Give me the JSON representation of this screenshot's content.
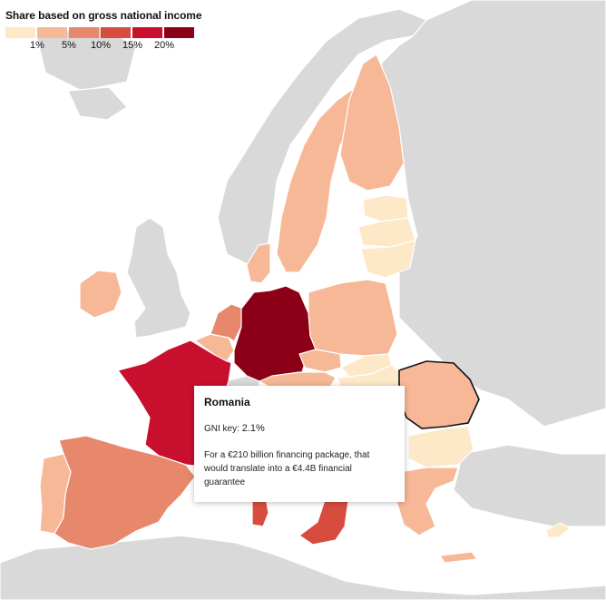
{
  "legend": {
    "title": "Share based on gross national income",
    "swatch_colors": [
      "#fde8c8",
      "#f6b896",
      "#e7876b",
      "#d84b3f",
      "#c8102e",
      "#8b0016"
    ],
    "ticks": [
      "1%",
      "5%",
      "10%",
      "15%",
      "20%"
    ]
  },
  "colors": {
    "ocean": "#ffffff",
    "non_eu_land": "#d9d9d9",
    "border": "#ffffff",
    "highlight_outline": "#111111"
  },
  "countries": {
    "germany": {
      "name": "Germany",
      "bucket": 5
    },
    "france": {
      "name": "France",
      "bucket": 4
    },
    "italy": {
      "name": "Italy",
      "bucket": 3
    },
    "spain": {
      "name": "Spain",
      "bucket": 2
    },
    "netherlands": {
      "name": "Netherlands",
      "bucket": 2
    },
    "poland": {
      "name": "Poland",
      "bucket": 1
    },
    "sweden": {
      "name": "Sweden",
      "bucket": 1
    },
    "finland": {
      "name": "Finland",
      "bucket": 1
    },
    "ireland": {
      "name": "Ireland",
      "bucket": 1
    },
    "denmark": {
      "name": "Denmark",
      "bucket": 1
    },
    "belgium": {
      "name": "Belgium",
      "bucket": 1
    },
    "austria": {
      "name": "Austria",
      "bucket": 1
    },
    "czechia": {
      "name": "Czechia",
      "bucket": 1
    },
    "portugal": {
      "name": "Portugal",
      "bucket": 1
    },
    "greece": {
      "name": "Greece",
      "bucket": 1
    },
    "romania": {
      "name": "Romania",
      "bucket": 1
    },
    "hungary": {
      "name": "Hungary",
      "bucket": 0
    },
    "bulgaria": {
      "name": "Bulgaria",
      "bucket": 0
    },
    "estonia": {
      "name": "Estonia",
      "bucket": 0
    },
    "latvia": {
      "name": "Latvia",
      "bucket": 0
    },
    "lithuania": {
      "name": "Lithuania",
      "bucket": 0
    },
    "slovakia": {
      "name": "Slovakia",
      "bucket": 0
    },
    "cyprus": {
      "name": "Cyprus",
      "bucket": 0
    }
  },
  "tooltip": {
    "country": "Romania",
    "key_label": "GNI key:",
    "key_value": "2.1%",
    "text": "For a €210 billion financing package, that would translate into a €4.4B financial guarantee"
  }
}
